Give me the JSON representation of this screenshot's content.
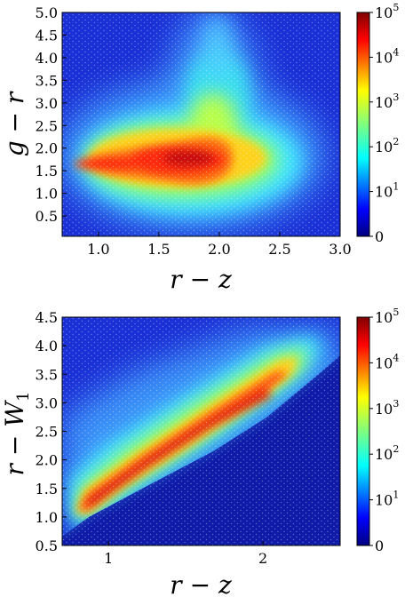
{
  "chart_data": [
    {
      "type": "heatmap",
      "panel": "top",
      "xlabel": "r − z",
      "ylabel": "g − r",
      "xlim": [
        0.7,
        3.0
      ],
      "ylim": [
        0.05,
        5.0
      ],
      "x_ticks": [
        1.0,
        1.5,
        2.0,
        2.5,
        3.0
      ],
      "x_tick_labels": [
        "1.0",
        "1.5",
        "2.0",
        "2.5",
        "3.0"
      ],
      "y_ticks": [
        0.5,
        1.0,
        1.5,
        2.0,
        2.5,
        3.0,
        3.5,
        4.0,
        4.5,
        5.0
      ],
      "y_tick_labels": [
        "0.5",
        "1.0",
        "1.5",
        "2.0",
        "2.5",
        "3.0",
        "3.5",
        "4.0",
        "4.5",
        "5.0"
      ],
      "colorbar": {
        "scale": "log",
        "colormap": "jet",
        "ticks": [
          {
            "text": "0",
            "sup": ""
          },
          {
            "text": "10",
            "sup": "1"
          },
          {
            "text": "10",
            "sup": "2"
          },
          {
            "text": "10",
            "sup": "3"
          },
          {
            "text": "10",
            "sup": "4"
          },
          {
            "text": "10",
            "sup": "5"
          }
        ]
      },
      "density_peak": {
        "x": 1.6,
        "y": 1.75,
        "max_count": 100000
      }
    },
    {
      "type": "heatmap",
      "panel": "bottom",
      "xlabel": "r − z",
      "ylabel": "r − W",
      "ylabel_sub": "1",
      "xlim": [
        0.7,
        2.5
      ],
      "ylim": [
        0.5,
        4.5
      ],
      "x_ticks": [
        1,
        2
      ],
      "x_tick_labels": [
        "1",
        "2"
      ],
      "y_ticks": [
        0.5,
        1.0,
        1.5,
        2.0,
        2.5,
        3.0,
        3.5,
        4.0,
        4.5
      ],
      "y_tick_labels": [
        "0.5",
        "1.0",
        "1.5",
        "2.0",
        "2.5",
        "3.0",
        "3.5",
        "4.0",
        "4.5"
      ],
      "colorbar": {
        "scale": "log",
        "colormap": "jet",
        "ticks": [
          {
            "text": "0",
            "sup": ""
          },
          {
            "text": "10",
            "sup": "1"
          },
          {
            "text": "10",
            "sup": "2"
          },
          {
            "text": "10",
            "sup": "3"
          },
          {
            "text": "10",
            "sup": "4"
          },
          {
            "text": "10",
            "sup": "5"
          }
        ]
      },
      "density_ridge": {
        "x_from": 0.8,
        "y_from": 1.1,
        "x_to": 2.2,
        "y_to": 4.1,
        "max_count": 100000
      }
    }
  ]
}
